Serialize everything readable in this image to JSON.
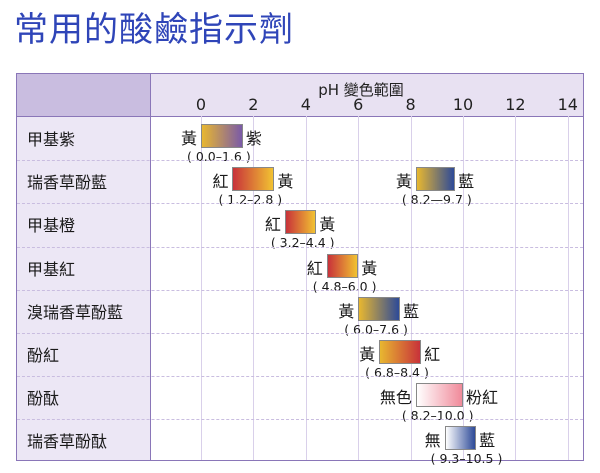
{
  "title": "常用的酸鹼指示劑",
  "axis_title": "pH 變色範圍",
  "ticks": [
    "0",
    "2",
    "4",
    "6",
    "8",
    "10",
    "12",
    "14"
  ],
  "indicators": [
    {
      "name": "甲基紫",
      "transitions": [
        {
          "from_color": "黃",
          "to_color": "紫",
          "range": "( 0.0–1.6 )",
          "ph_start": 0.0,
          "ph_end": 1.6,
          "grad": [
            "#e8b730",
            "#7a5aa8"
          ]
        }
      ]
    },
    {
      "name": "瑞香草酚藍",
      "transitions": [
        {
          "from_color": "紅",
          "to_color": "黃",
          "range": "( 1.2–2.8 )",
          "ph_start": 1.2,
          "ph_end": 2.8,
          "grad": [
            "#c8323a",
            "#f1c232"
          ]
        },
        {
          "from_color": "黃",
          "to_color": "藍",
          "range": "( 8.2—9.7 )",
          "ph_start": 8.2,
          "ph_end": 9.7,
          "grad": [
            "#e8b730",
            "#2d4a98"
          ]
        }
      ]
    },
    {
      "name": "甲基橙",
      "transitions": [
        {
          "from_color": "紅",
          "to_color": "黃",
          "range": "( 3.2–4.4 )",
          "ph_start": 3.2,
          "ph_end": 4.4,
          "grad": [
            "#c8323a",
            "#f1c232"
          ]
        }
      ]
    },
    {
      "name": "甲基紅",
      "transitions": [
        {
          "from_color": "紅",
          "to_color": "黃",
          "range": "( 4.8–6.0 )",
          "ph_start": 4.8,
          "ph_end": 6.0,
          "grad": [
            "#c8323a",
            "#f1c232"
          ]
        }
      ]
    },
    {
      "name": "溴瑞香草酚藍",
      "transitions": [
        {
          "from_color": "黃",
          "to_color": "藍",
          "range": "( 6.0–7.6 )",
          "ph_start": 6.0,
          "ph_end": 7.6,
          "grad": [
            "#e8b730",
            "#2d4a98"
          ]
        }
      ]
    },
    {
      "name": "酚紅",
      "transitions": [
        {
          "from_color": "黃",
          "to_color": "紅",
          "range": "( 6.8–8.4 )",
          "ph_start": 6.8,
          "ph_end": 8.4,
          "grad": [
            "#e8b730",
            "#c8323a"
          ]
        }
      ]
    },
    {
      "name": "酚酞",
      "transitions": [
        {
          "from_color": "無色",
          "to_color": "粉紅",
          "range": "( 8.2–10.0 )",
          "ph_start": 8.2,
          "ph_end": 10.0,
          "grad": [
            "#ffffff",
            "#f08a9a"
          ]
        }
      ]
    },
    {
      "name": "瑞香草酚酞",
      "transitions": [
        {
          "from_color": "無",
          "to_color": "藍",
          "range": "( 9.3–10.5 )",
          "ph_start": 9.3,
          "ph_end": 10.5,
          "grad": [
            "#ffffff",
            "#2d4a98"
          ]
        }
      ]
    }
  ]
}
